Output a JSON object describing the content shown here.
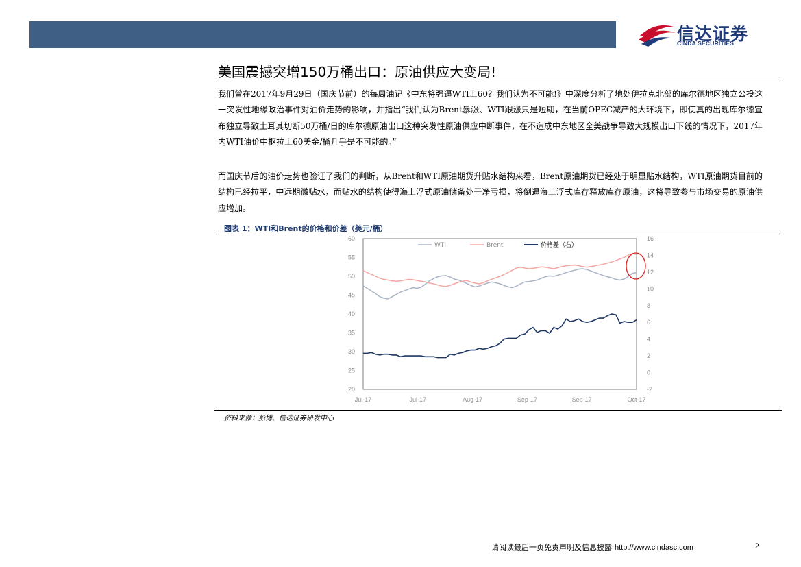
{
  "header": {
    "logo_cn": "信达证券",
    "logo_en": "CINDA SECURITIES",
    "brand_colors": {
      "band": "#3f5f85",
      "logo_red": "#c8102e",
      "logo_blue": "#1f3b7a"
    }
  },
  "headline": "美国震撼突增150万桶出口：原油供应大变局!",
  "paragraphs": [
    "我们曾在2017年9月29日（国庆节前）的每周油记《中东将强逼WTI上60？我们认为不可能!》中深度分析了地处伊拉克北部的库尔德地区独立公投这一突发性地缘政治事件对油价走势的影响，并指出“我们认为Brent暴涨、WTI跟涨只是短期，在当前OPEC减产的大环境下，即使真的出现库尔德宣布独立导致土耳其切断50万桶/日的库尔德原油出口这种突发性原油供应中断事件，在不造成中东地区全美战争导致大规模出口下线的情况下，2017年内WTI油价中枢拉上60美金/桶几乎是不可能的。”",
    "而国庆节后的油价走势也验证了我们的判断，从Brent和WTI原油期货升贴水结构来看，Brent原油期货已经处于明显贴水结构，WTI原油期货目前的结构已经拉平，中远期微贴水，而贴水的结构使得海上浮式原油储备处于净亏损，将倒逼海上浮式库存释放库存原油，这将导致参与市场交易的原油供应增加。"
  ],
  "figure": {
    "caption": "图表 1：WTI和Brent的价格和价差（美元/桶）",
    "source": "资料来源：彭博、信达证券研发中心"
  },
  "chart_data": {
    "type": "line",
    "x_tick_labels": [
      "Jul-17",
      "Jul-17",
      "Aug-17",
      "Sep-17",
      "Sep-17",
      "Oct-17"
    ],
    "y_left": {
      "ticks": [
        "60",
        "55",
        "50",
        "45",
        "40",
        "35",
        "30",
        "25",
        "20"
      ],
      "range": [
        20,
        60
      ]
    },
    "y_right": {
      "ticks": [
        "16",
        "14",
        "12",
        "10",
        "8",
        "6",
        "4",
        "2",
        "0",
        "-2"
      ],
      "range": [
        -2,
        16
      ]
    },
    "grid": false,
    "legend_position": "top",
    "series": [
      {
        "name": "WTI",
        "axis": "left",
        "color": "#a9b4c4",
        "values": [
          47.5,
          46.8,
          46.1,
          45.4,
          44.6,
          44.2,
          44.0,
          44.6,
          45.2,
          45.8,
          46.2,
          46.6,
          47.0,
          46.8,
          47.1,
          47.9,
          48.8,
          49.4,
          49.9,
          50.1,
          50.2,
          49.8,
          49.3,
          49.0,
          48.6,
          48.1,
          47.6,
          47.2,
          47.4,
          47.8,
          48.2,
          48.5,
          48.3,
          48.0,
          47.6,
          47.2,
          47.0,
          47.4,
          48.0,
          48.5,
          48.6,
          48.8,
          49.0,
          49.5,
          49.9,
          50.1,
          50.0,
          50.3,
          50.6,
          51.0,
          51.3,
          51.6,
          51.9,
          52.0,
          51.8,
          51.4,
          51.0,
          50.6,
          50.2,
          49.9,
          49.6,
          49.2,
          49.0,
          49.3,
          50.0,
          50.8,
          51.0
        ]
      },
      {
        "name": "Brent",
        "axis": "left",
        "color": "#f2a7a4",
        "values": [
          51.5,
          51.0,
          50.5,
          50.0,
          49.5,
          49.2,
          49.0,
          48.8,
          48.7,
          48.8,
          49.0,
          49.2,
          49.1,
          48.9,
          48.7,
          48.5,
          48.2,
          48.0,
          47.7,
          47.4,
          47.3,
          47.6,
          48.0,
          48.4,
          48.7,
          48.9,
          48.5,
          48.2,
          48.0,
          48.3,
          48.8,
          49.2,
          49.6,
          50.0,
          50.5,
          51.0,
          51.6,
          52.2,
          52.4,
          52.2,
          52.0,
          52.1,
          52.3,
          52.5,
          52.4,
          52.2,
          52.0,
          52.3,
          52.6,
          52.8,
          52.9,
          53.0,
          52.8,
          52.6,
          52.4,
          52.6,
          52.8,
          53.0,
          53.2,
          53.5,
          53.8,
          54.2,
          54.6,
          55.0,
          55.6,
          56.0,
          55.8
        ]
      },
      {
        "name": "价格差（右）",
        "axis": "right",
        "color": "#1f3763",
        "values": [
          2.3,
          2.3,
          2.4,
          2.2,
          2.1,
          2.2,
          2.2,
          2.1,
          2.1,
          1.9,
          2.0,
          2.0,
          2.0,
          2.0,
          2.0,
          1.9,
          1.9,
          1.9,
          1.8,
          1.8,
          1.8,
          2.2,
          2.1,
          2.3,
          2.4,
          2.6,
          2.7,
          2.7,
          2.9,
          2.8,
          2.9,
          3.1,
          3.2,
          3.5,
          4.0,
          4.1,
          4.1,
          4.1,
          4.5,
          4.6,
          5.1,
          5.4,
          4.8,
          5.0,
          5.0,
          4.7,
          5.4,
          5.2,
          5.6,
          6.4,
          6.1,
          6.2,
          6.4,
          6.1,
          6.0,
          6.1,
          6.3,
          6.5,
          6.5,
          6.8,
          7.0,
          6.9,
          5.9,
          6.1,
          6.0,
          6.0,
          6.3
        ]
      }
    ],
    "annotation": "red-ellipse-highlight-latest"
  },
  "footer": {
    "note": "请阅读最后一页免责声明及信息披露",
    "url": "http://www.cindasc.com",
    "page_number": "2"
  }
}
